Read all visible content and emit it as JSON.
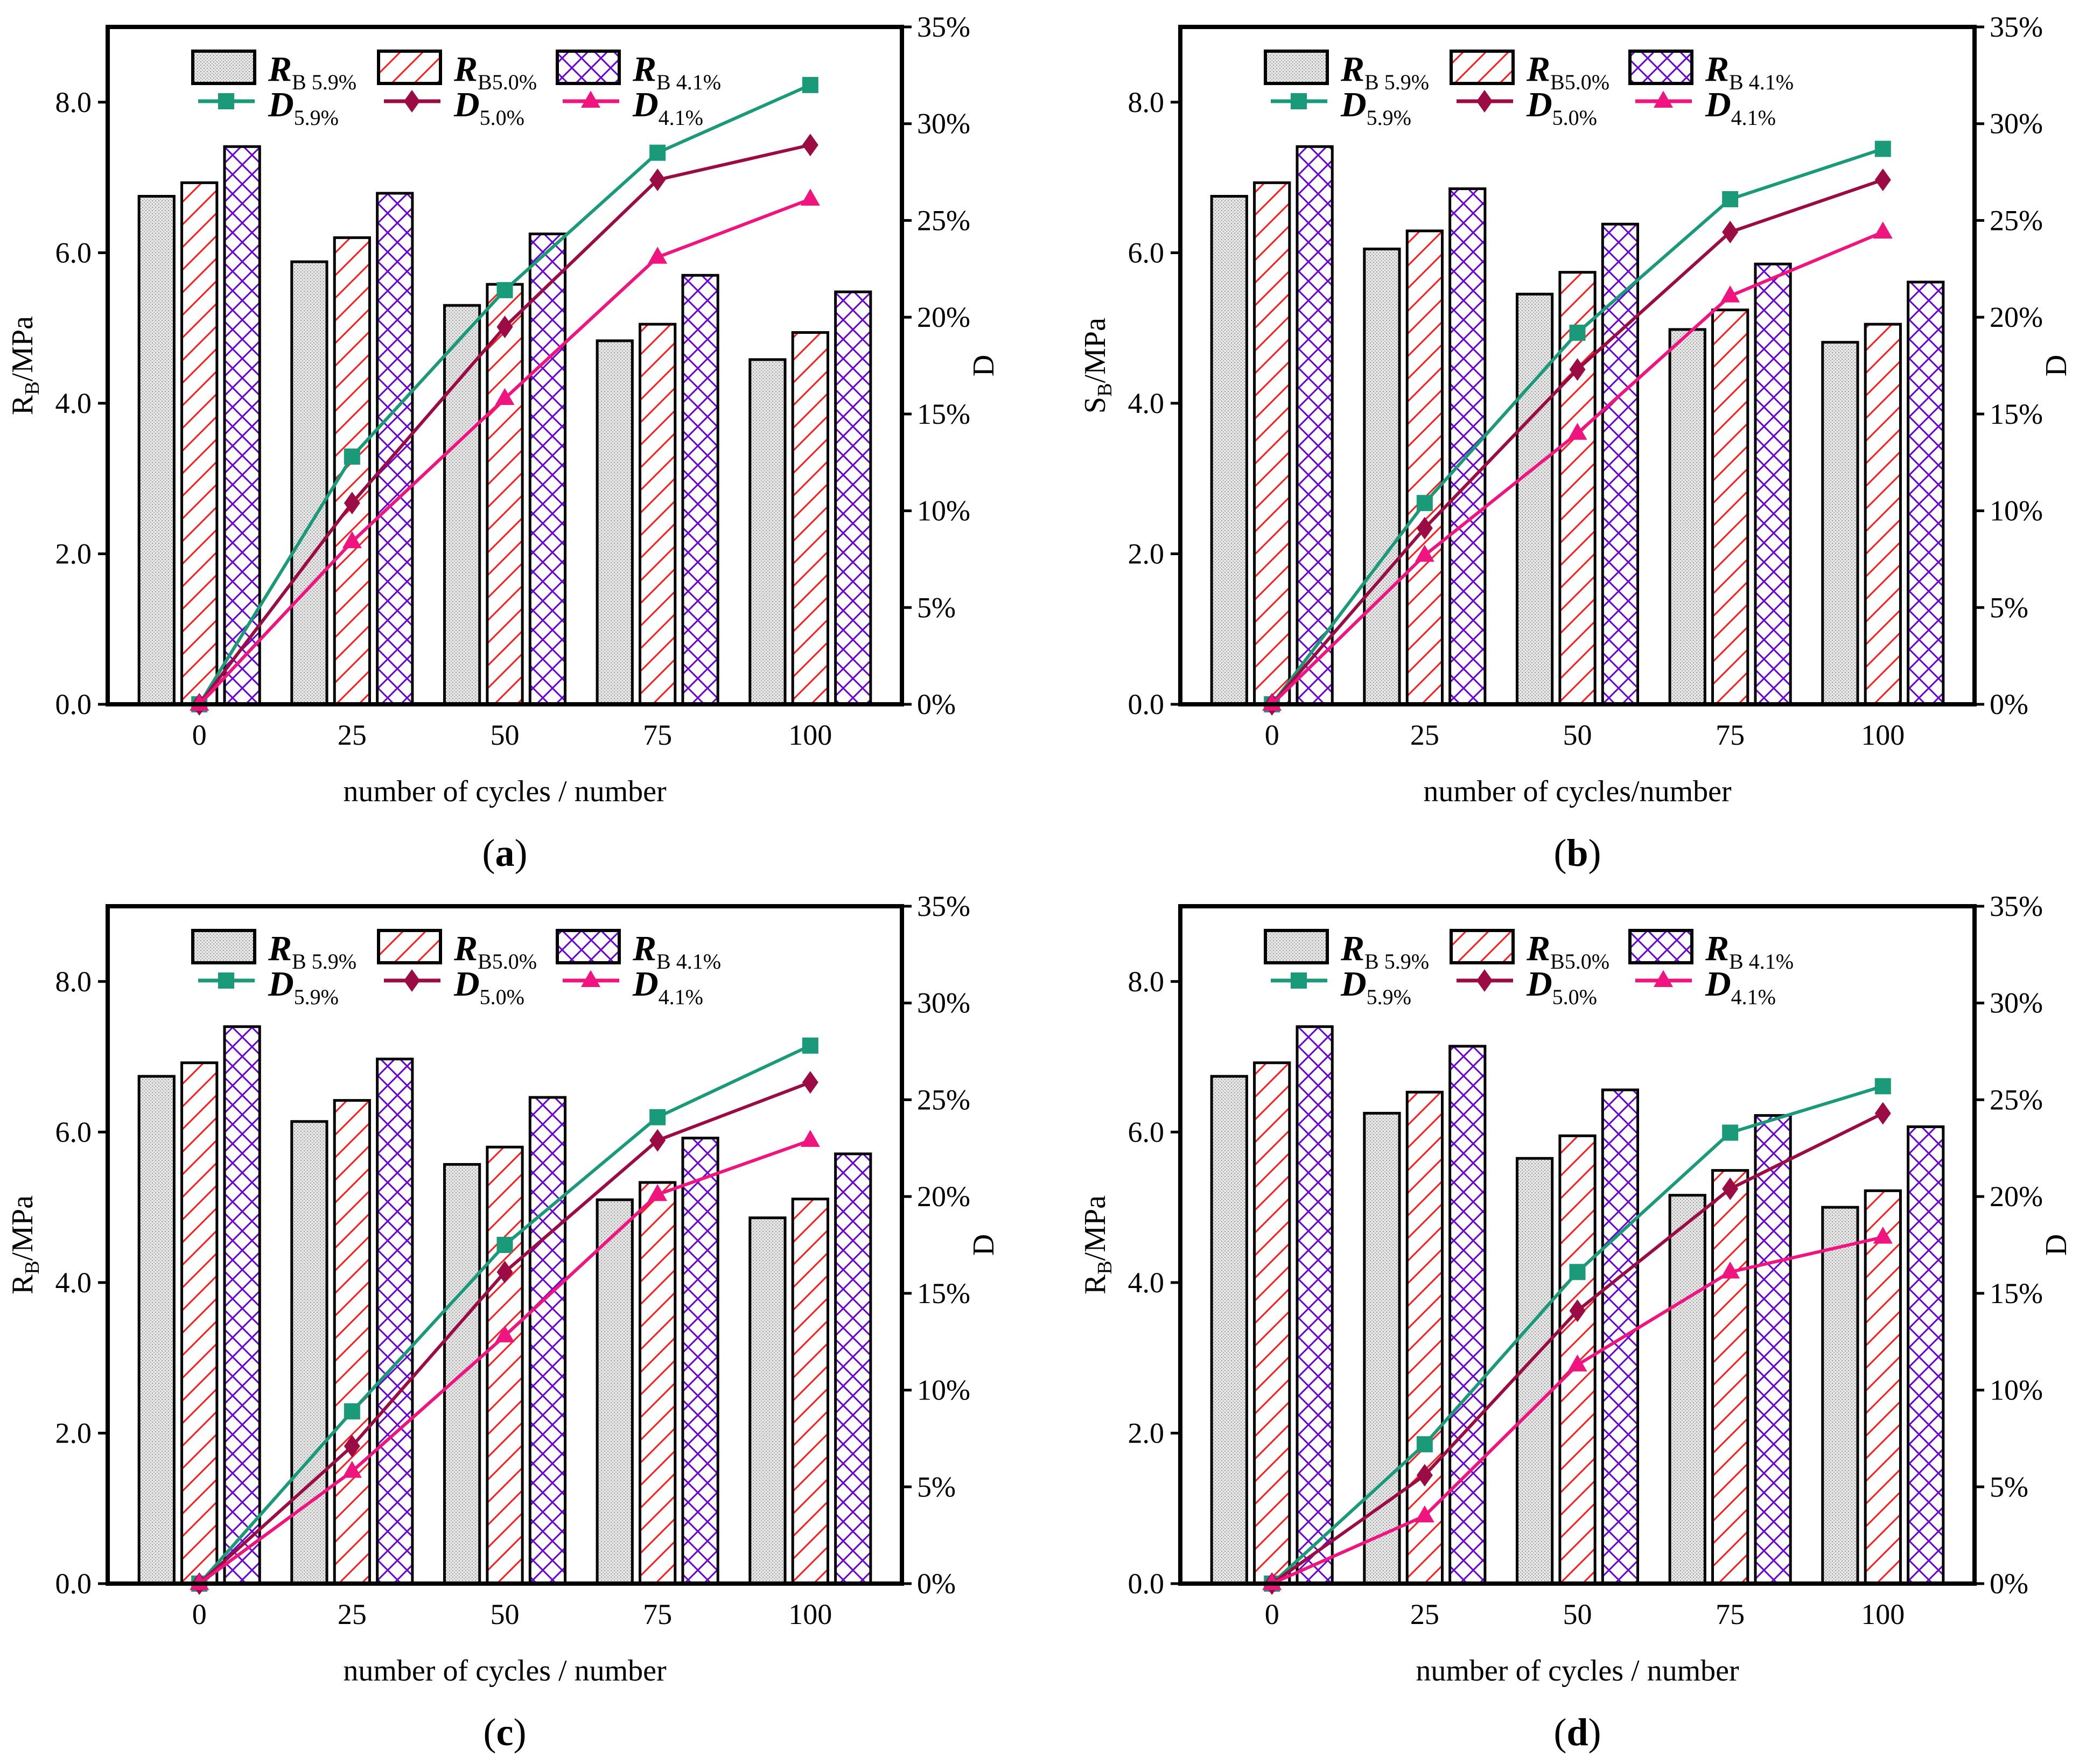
{
  "colors": {
    "grey_fill": "#d9d9d9",
    "red_hatch": "#ff1a1a",
    "purple_hatch": "#6a00d8",
    "d59": "#1a9a78",
    "d50": "#9b0c45",
    "d41": "#f0147f",
    "axis": "#000000"
  },
  "chart_data": [
    {
      "type": "bar+line",
      "label_open": "(",
      "label_letter": "a",
      "label_close": ")",
      "ylabel_main": "R",
      "ylabel_sub": "B",
      "ylabel_unit": "/MPa",
      "y2label": "D",
      "xlabel": "number of cycles / number",
      "categories": [
        "0",
        "25",
        "50",
        "75",
        "100"
      ],
      "ylim": [
        0,
        9
      ],
      "yticks": [
        "0.0",
        "2.0",
        "4.0",
        "6.0",
        "8.0"
      ],
      "y2lim": [
        0,
        35
      ],
      "y2ticks": [
        "0%",
        "5%",
        "10%",
        "15%",
        "20%",
        "25%",
        "30%",
        "35%"
      ],
      "bars": [
        {
          "main": "R",
          "sub": "B 5.9%",
          "values": [
            6.75,
            5.88,
            5.3,
            4.83,
            4.58
          ]
        },
        {
          "main": "R",
          "sub": "B5.0%",
          "values": [
            6.93,
            6.2,
            5.58,
            5.05,
            4.94
          ]
        },
        {
          "main": "R",
          "sub": "B 4.1%",
          "values": [
            7.41,
            6.79,
            6.25,
            5.7,
            5.48
          ]
        }
      ],
      "lines": [
        {
          "main": "D",
          "sub": "5.9%",
          "values": [
            0,
            12.8,
            21.4,
            28.5,
            32.0
          ]
        },
        {
          "main": "D",
          "sub": "5.0%",
          "values": [
            0,
            10.4,
            19.5,
            27.1,
            28.9
          ]
        },
        {
          "main": "D",
          "sub": "4.1%",
          "values": [
            0,
            8.4,
            15.8,
            23.1,
            26.1
          ]
        }
      ]
    },
    {
      "type": "bar+line",
      "label_open": "(",
      "label_letter": "b",
      "label_close": ")",
      "ylabel_main": "S",
      "ylabel_sub": "B",
      "ylabel_unit": "/MPa",
      "y2label": "D",
      "xlabel": "number of cycles/number",
      "categories": [
        "0",
        "25",
        "50",
        "75",
        "100"
      ],
      "ylim": [
        0,
        9
      ],
      "yticks": [
        "0.0",
        "2.0",
        "4.0",
        "6.0",
        "8.0"
      ],
      "y2lim": [
        0,
        35
      ],
      "y2ticks": [
        "0%",
        "5%",
        "10%",
        "15%",
        "20%",
        "25%",
        "30%",
        "35%"
      ],
      "bars": [
        {
          "main": "R",
          "sub": "B 5.9%",
          "values": [
            6.75,
            6.05,
            5.45,
            4.98,
            4.81
          ]
        },
        {
          "main": "R",
          "sub": "B5.0%",
          "values": [
            6.93,
            6.29,
            5.74,
            5.24,
            5.05
          ]
        },
        {
          "main": "R",
          "sub": "B 4.1%",
          "values": [
            7.41,
            6.85,
            6.38,
            5.85,
            5.61
          ]
        }
      ],
      "lines": [
        {
          "main": "D",
          "sub": "5.9%",
          "values": [
            0,
            10.4,
            19.2,
            26.1,
            28.7
          ]
        },
        {
          "main": "D",
          "sub": "5.0%",
          "values": [
            0,
            9.1,
            17.3,
            24.4,
            27.1
          ]
        },
        {
          "main": "D",
          "sub": "4.1%",
          "values": [
            0,
            7.7,
            14.0,
            21.1,
            24.4
          ]
        }
      ]
    },
    {
      "type": "bar+line",
      "label_open": "(",
      "label_letter": "c",
      "label_close": ")",
      "ylabel_main": "R",
      "ylabel_sub": "B",
      "ylabel_unit": "/MPa",
      "y2label": "D",
      "xlabel": "number of cycles / number",
      "categories": [
        "0",
        "25",
        "50",
        "75",
        "100"
      ],
      "ylim": [
        0,
        9
      ],
      "yticks": [
        "0.0",
        "2.0",
        "4.0",
        "6.0",
        "8.0"
      ],
      "y2lim": [
        0,
        35
      ],
      "y2ticks": [
        "0%",
        "5%",
        "10%",
        "15%",
        "20%",
        "25%",
        "30%",
        "35%"
      ],
      "bars": [
        {
          "main": "R",
          "sub": "B 5.9%",
          "values": [
            6.74,
            6.14,
            5.57,
            5.1,
            4.86
          ]
        },
        {
          "main": "R",
          "sub": "B5.0%",
          "values": [
            6.92,
            6.42,
            5.8,
            5.33,
            5.11
          ]
        },
        {
          "main": "R",
          "sub": "B 4.1%",
          "values": [
            7.4,
            6.97,
            6.46,
            5.92,
            5.71
          ]
        }
      ],
      "lines": [
        {
          "main": "D",
          "sub": "5.9%",
          "values": [
            0,
            8.9,
            17.5,
            24.1,
            27.8
          ]
        },
        {
          "main": "D",
          "sub": "5.0%",
          "values": [
            0,
            7.1,
            16.1,
            22.9,
            25.9
          ]
        },
        {
          "main": "D",
          "sub": "4.1%",
          "values": [
            0,
            5.8,
            12.8,
            20.1,
            22.9
          ]
        }
      ]
    },
    {
      "type": "bar+line",
      "label_open": "(",
      "label_letter": "d",
      "label_close": ")",
      "ylabel_main": "R",
      "ylabel_sub": "B",
      "ylabel_unit": "/MPa",
      "y2label": "D",
      "xlabel": "number of cycles / number",
      "categories": [
        "0",
        "25",
        "50",
        "75",
        "100"
      ],
      "ylim": [
        0,
        9
      ],
      "yticks": [
        "0.0",
        "2.0",
        "4.0",
        "6.0",
        "8.0"
      ],
      "y2lim": [
        0,
        35
      ],
      "y2ticks": [
        "0%",
        "5%",
        "10%",
        "15%",
        "20%",
        "25%",
        "30%",
        "35%"
      ],
      "bars": [
        {
          "main": "R",
          "sub": "B 5.9%",
          "values": [
            6.74,
            6.25,
            5.65,
            5.16,
            5.0
          ]
        },
        {
          "main": "R",
          "sub": "B5.0%",
          "values": [
            6.92,
            6.53,
            5.95,
            5.49,
            5.22
          ]
        },
        {
          "main": "R",
          "sub": "B 4.1%",
          "values": [
            7.4,
            7.14,
            6.56,
            6.22,
            6.07
          ]
        }
      ],
      "lines": [
        {
          "main": "D",
          "sub": "5.9%",
          "values": [
            0,
            7.2,
            16.1,
            23.3,
            25.7
          ]
        },
        {
          "main": "D",
          "sub": "5.0%",
          "values": [
            0,
            5.6,
            14.1,
            20.4,
            24.3
          ]
        },
        {
          "main": "D",
          "sub": "4.1%",
          "values": [
            0,
            3.5,
            11.3,
            16.1,
            17.9
          ]
        }
      ]
    }
  ]
}
